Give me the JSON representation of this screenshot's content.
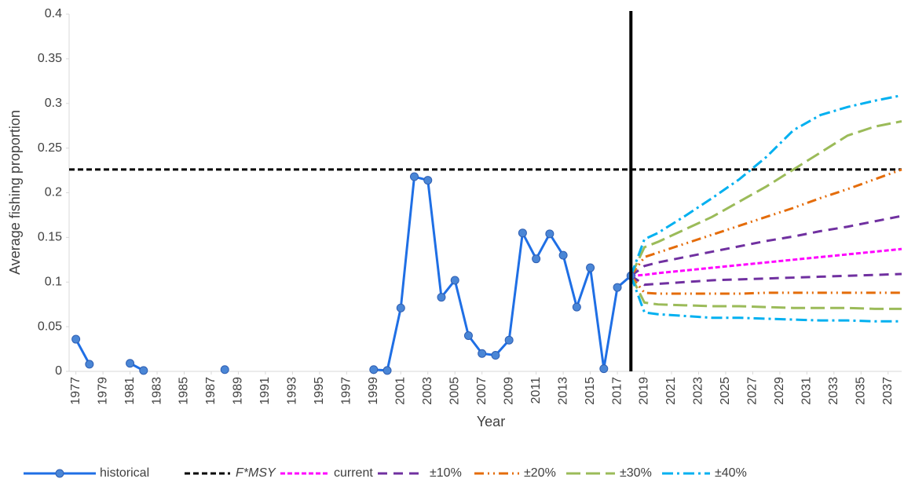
{
  "chart_data": {
    "type": "line",
    "y_label": "Average fishing proportion",
    "x_label": "Year",
    "xlim": [
      1976.5,
      2038
    ],
    "xticks": [
      1977,
      1979,
      1981,
      1983,
      1985,
      1987,
      1989,
      1991,
      1993,
      1995,
      1997,
      1999,
      2001,
      2003,
      2005,
      2007,
      2009,
      2011,
      2013,
      2015,
      2017,
      2019,
      2021,
      2023,
      2025,
      2027,
      2029,
      2031,
      2033,
      2035,
      2037
    ],
    "ylim": [
      0,
      0.4
    ],
    "yticks": [
      0,
      0.05,
      0.1,
      0.15,
      0.2,
      0.25,
      0.3,
      0.35,
      0.4
    ],
    "vline": 2018,
    "hline": {
      "name": "F*MSY",
      "value": 0.226,
      "color": "#000000"
    },
    "historical": {
      "name": "historical",
      "color": "#1f6fe5",
      "x": [
        1977,
        1978,
        1979,
        1980,
        1981,
        1982,
        1983,
        1984,
        1985,
        1986,
        1987,
        1988,
        1989,
        1990,
        1991,
        1992,
        1993,
        1994,
        1995,
        1996,
        1997,
        1998,
        1999,
        2000,
        2001,
        2002,
        2003,
        2004,
        2005,
        2006,
        2007,
        2008,
        2009,
        2010,
        2011,
        2012,
        2013,
        2014,
        2015,
        2016,
        2017,
        2018
      ],
      "values": [
        0.036,
        0.008,
        null,
        null,
        0.009,
        0.001,
        null,
        null,
        null,
        null,
        null,
        0.002,
        null,
        null,
        null,
        null,
        null,
        null,
        null,
        null,
        null,
        null,
        0.002,
        0.001,
        0.071,
        0.218,
        0.214,
        0.083,
        0.102,
        0.04,
        0.02,
        0.018,
        0.035,
        0.155,
        0.126,
        0.154,
        0.13,
        0.072,
        0.116,
        0.003,
        0.094,
        0.107
      ]
    },
    "projection_x": [
      2018,
      2019,
      2020,
      2022,
      2024,
      2026,
      2028,
      2030,
      2032,
      2034,
      2036,
      2038
    ],
    "series": [
      {
        "name": "current",
        "color": "#ff00ff",
        "upper": [
          0.107,
          0.108,
          0.11,
          0.113,
          0.116,
          0.119,
          0.122,
          0.125,
          0.128,
          0.131,
          0.134,
          0.137
        ]
      },
      {
        "name": "±10%",
        "color": "#7030a0",
        "upper": [
          0.107,
          0.118,
          0.122,
          0.128,
          0.134,
          0.14,
          0.146,
          0.151,
          0.157,
          0.162,
          0.168,
          0.174
        ],
        "lower": [
          0.107,
          0.097,
          0.098,
          0.1,
          0.102,
          0.103,
          0.104,
          0.105,
          0.106,
          0.107,
          0.108,
          0.109
        ]
      },
      {
        "name": "±20%",
        "color": "#e46c0a",
        "upper": [
          0.107,
          0.128,
          0.133,
          0.143,
          0.153,
          0.163,
          0.173,
          0.183,
          0.194,
          0.204,
          0.215,
          0.226
        ],
        "lower": [
          0.107,
          0.088,
          0.087,
          0.087,
          0.087,
          0.087,
          0.088,
          0.088,
          0.088,
          0.088,
          0.088,
          0.088
        ]
      },
      {
        "name": "±30%",
        "color": "#9bbb59",
        "upper": [
          0.107,
          0.139,
          0.145,
          0.159,
          0.173,
          0.19,
          0.207,
          0.226,
          0.245,
          0.264,
          0.274,
          0.28
        ],
        "lower": [
          0.107,
          0.077,
          0.075,
          0.074,
          0.073,
          0.073,
          0.072,
          0.071,
          0.071,
          0.071,
          0.07,
          0.07
        ]
      },
      {
        "name": "±40%",
        "color": "#00b0f0",
        "upper": [
          0.107,
          0.148,
          0.155,
          0.174,
          0.194,
          0.215,
          0.24,
          0.27,
          0.287,
          0.296,
          0.303,
          0.309
        ],
        "lower": [
          0.107,
          0.066,
          0.064,
          0.062,
          0.06,
          0.06,
          0.059,
          0.058,
          0.057,
          0.057,
          0.056,
          0.056
        ]
      }
    ]
  }
}
